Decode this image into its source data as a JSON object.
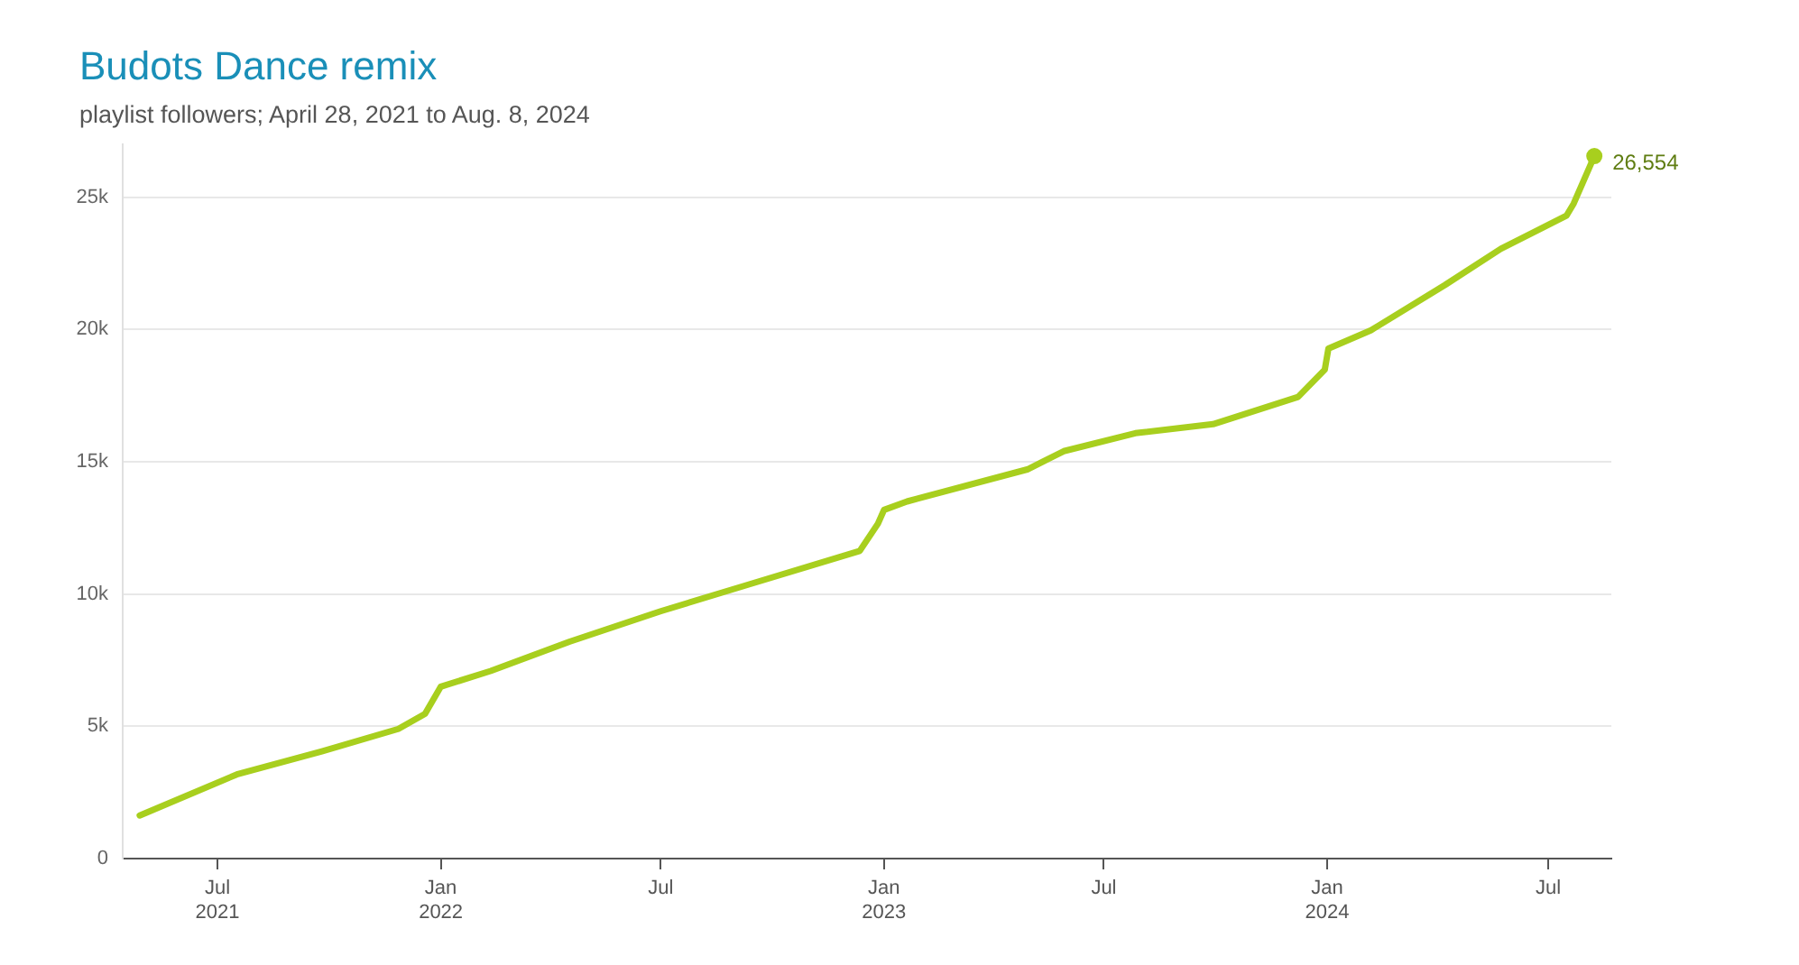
{
  "chart_data": {
    "type": "line",
    "title": "Budots Dance remix",
    "subtitle": "playlist followers; April 28, 2021 to Aug. 8, 2024",
    "x": [
      "2021-04-28",
      "2021-07-17",
      "2021-09-25",
      "2021-11-27",
      "2021-12-19",
      "2022-01-01",
      "2022-02-11",
      "2022-04-17",
      "2022-07-01",
      "2022-09-13",
      "2022-12-12",
      "2022-12-27",
      "2023-01-01",
      "2023-01-20",
      "2023-04-29",
      "2023-05-29",
      "2023-07-27",
      "2023-09-29",
      "2023-12-08",
      "2023-12-30",
      "2024-01-02",
      "2024-02-06",
      "2024-04-07",
      "2024-05-23",
      "2024-07-16",
      "2024-07-22",
      "2024-08-08"
    ],
    "series": [
      {
        "color": "#a8cf1e",
        "values": [
          1630,
          3180,
          4050,
          4900,
          5470,
          6500,
          7090,
          8200,
          9350,
          10380,
          11630,
          12660,
          13180,
          13500,
          14710,
          15400,
          16080,
          16420,
          17450,
          18480,
          19280,
          19970,
          21680,
          23050,
          24300,
          24760,
          26554
        ]
      }
    ],
    "xlim": [
      "2021-04-14",
      "2024-08-22"
    ],
    "xticks": [
      {
        "value": "2021-07-01",
        "label": "Jul\n2021"
      },
      {
        "value": "2022-01-01",
        "label": "Jan\n2022"
      },
      {
        "value": "2022-07-01",
        "label": "Jul"
      },
      {
        "value": "2023-01-01",
        "label": "Jan\n2023"
      },
      {
        "value": "2023-07-01",
        "label": "Jul"
      },
      {
        "value": "2024-01-01",
        "label": "Jan\n2024"
      },
      {
        "value": "2024-07-01",
        "label": "Jul"
      }
    ],
    "ylim": [
      0,
      27000
    ],
    "yticks": [
      0,
      {
        "value": 5000,
        "label": "5k"
      },
      {
        "value": 10000,
        "label": "10k"
      },
      {
        "value": 15000,
        "label": "15k"
      },
      {
        "value": 20000,
        "label": "20k"
      },
      {
        "value": 25000,
        "label": "25k"
      }
    ],
    "grid": "y",
    "legend": false,
    "marker": "none",
    "line_style": "solid",
    "annotations": [
      {
        "text": "26,554",
        "x": "2024-08-08",
        "y": 26554
      }
    ]
  }
}
